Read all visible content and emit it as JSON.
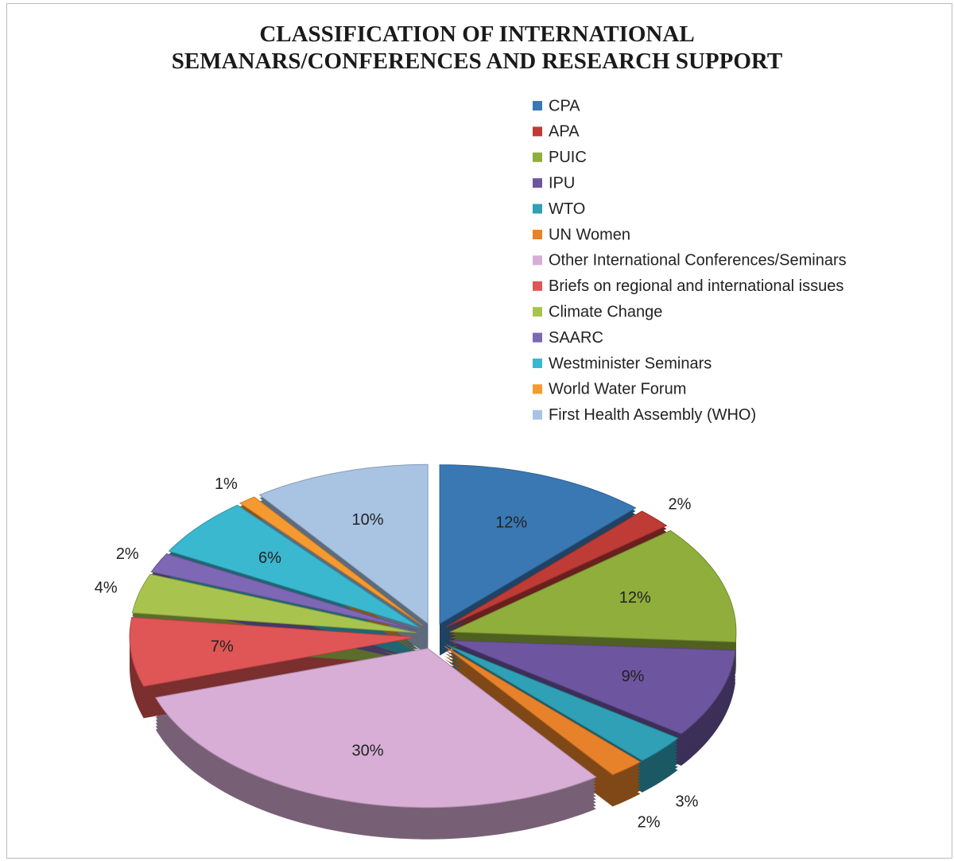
{
  "chart_data": {
    "type": "pie",
    "title": "CLASSIFICATION OF INTERNATIONAL SEMANARS/CONFERENCES AND RESEARCH SUPPORT",
    "categories": [
      "CPA",
      "APA",
      "PUIC",
      "IPU",
      "WTO",
      "UN Women",
      "Other International Conferences/Seminars",
      "Briefs on regional and international issues",
      "Climate Change",
      "SAARC",
      "Westminister Seminars",
      "World Water Forum",
      "First Health Assembly (WHO)"
    ],
    "values": [
      12,
      2,
      12,
      9,
      3,
      2,
      30,
      7,
      4,
      2,
      6,
      1,
      10
    ],
    "value_labels": [
      "12%",
      "2%",
      "12%",
      "9%",
      "3%",
      "2%",
      "30%",
      "7%",
      "4%",
      "2%",
      "6%",
      "1%",
      "10%"
    ],
    "colors": [
      "#3a78b4",
      "#be3b36",
      "#8fae3c",
      "#6d55a0",
      "#2fa0b5",
      "#e8822a",
      "#d8aed6",
      "#e05555",
      "#a8c44f",
      "#7e67b5",
      "#3ab8d0",
      "#f59a30",
      "#a9c3e3"
    ],
    "legend": "top-right"
  }
}
